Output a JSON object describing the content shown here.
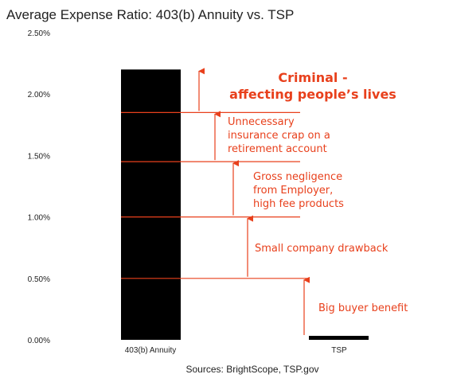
{
  "chart_data": {
    "type": "bar",
    "title": "Average Expense Ratio: 403(b) Annuity vs. TSP",
    "categories": [
      "403(b) Annuity",
      "TSP"
    ],
    "values": [
      2.2,
      0.03
    ],
    "ylim": [
      0,
      2.5
    ],
    "yticks": [
      "0.00%",
      "0.50%",
      "1.00%",
      "1.50%",
      "2.00%",
      "2.50%"
    ],
    "grid": false,
    "legend": "none",
    "bar_color": "#000000",
    "annotation_color": "#e8401c",
    "source": "Sources: BrightScope, TSP.gov",
    "annotations": [
      {
        "lines": [
          "Big buyer benefit"
        ],
        "from": 0.03,
        "to": 0.5,
        "bold": false
      },
      {
        "lines": [
          "Small company drawback"
        ],
        "from": 0.5,
        "to": 1.0,
        "bold": false
      },
      {
        "lines": [
          "Gross negligence",
          "from Employer,",
          "high fee products"
        ],
        "from": 1.0,
        "to": 1.45,
        "bold": false
      },
      {
        "lines": [
          "Unnecessary",
          "insurance crap on a",
          "retirement account"
        ],
        "from": 1.45,
        "to": 1.85,
        "bold": false
      },
      {
        "lines": [
          "Criminal -",
          "affecting people’s lives"
        ],
        "from": 1.85,
        "to": 2.2,
        "bold": true
      }
    ]
  }
}
